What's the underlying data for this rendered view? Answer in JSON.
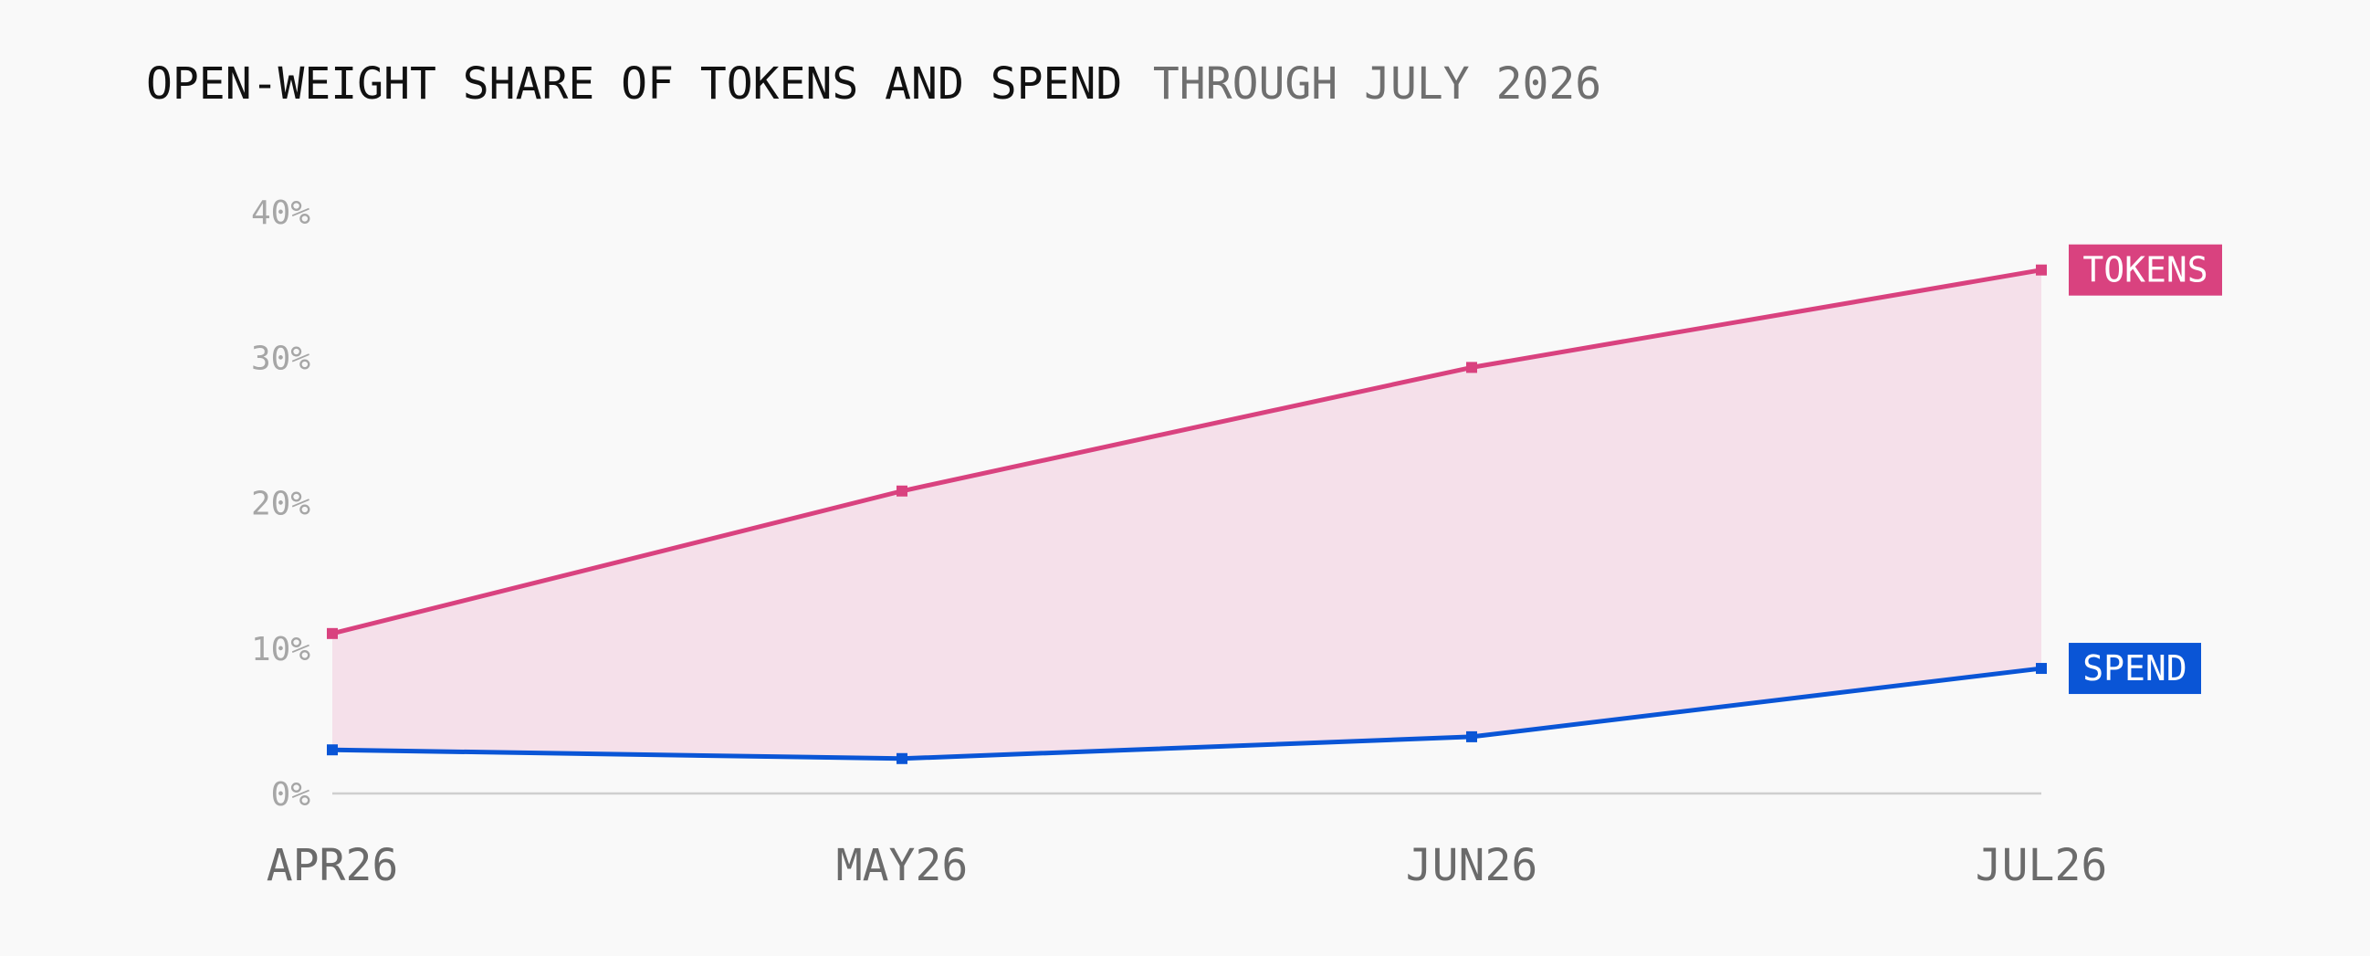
{
  "title": "OPEN-WEIGHT SHARE OF TOKENS AND SPEND",
  "subtitle": "THROUGH JULY 2026",
  "chart_data": {
    "type": "line",
    "title": "OPEN-WEIGHT SHARE OF TOKENS AND SPEND",
    "subtitle": "THROUGH JULY 2026",
    "categories": [
      "APR26",
      "MAY26",
      "JUN26",
      "JUL26"
    ],
    "yticks": [
      "0%",
      "10%",
      "20%",
      "30%",
      "40%"
    ],
    "ylim": [
      0,
      40
    ],
    "y_unit": "%",
    "series": [
      {
        "name": "TOKENS",
        "values": [
          11.0,
          20.8,
          29.3,
          36.0
        ],
        "color": "#d9427f"
      },
      {
        "name": "SPEND",
        "values": [
          3.0,
          2.4,
          3.9,
          8.6
        ],
        "color": "#0a55d6"
      }
    ],
    "fill_between": {
      "color": "#f5e0ea"
    },
    "axis_color": "#cfcfcf",
    "grid": false,
    "legend": "inline-right"
  }
}
